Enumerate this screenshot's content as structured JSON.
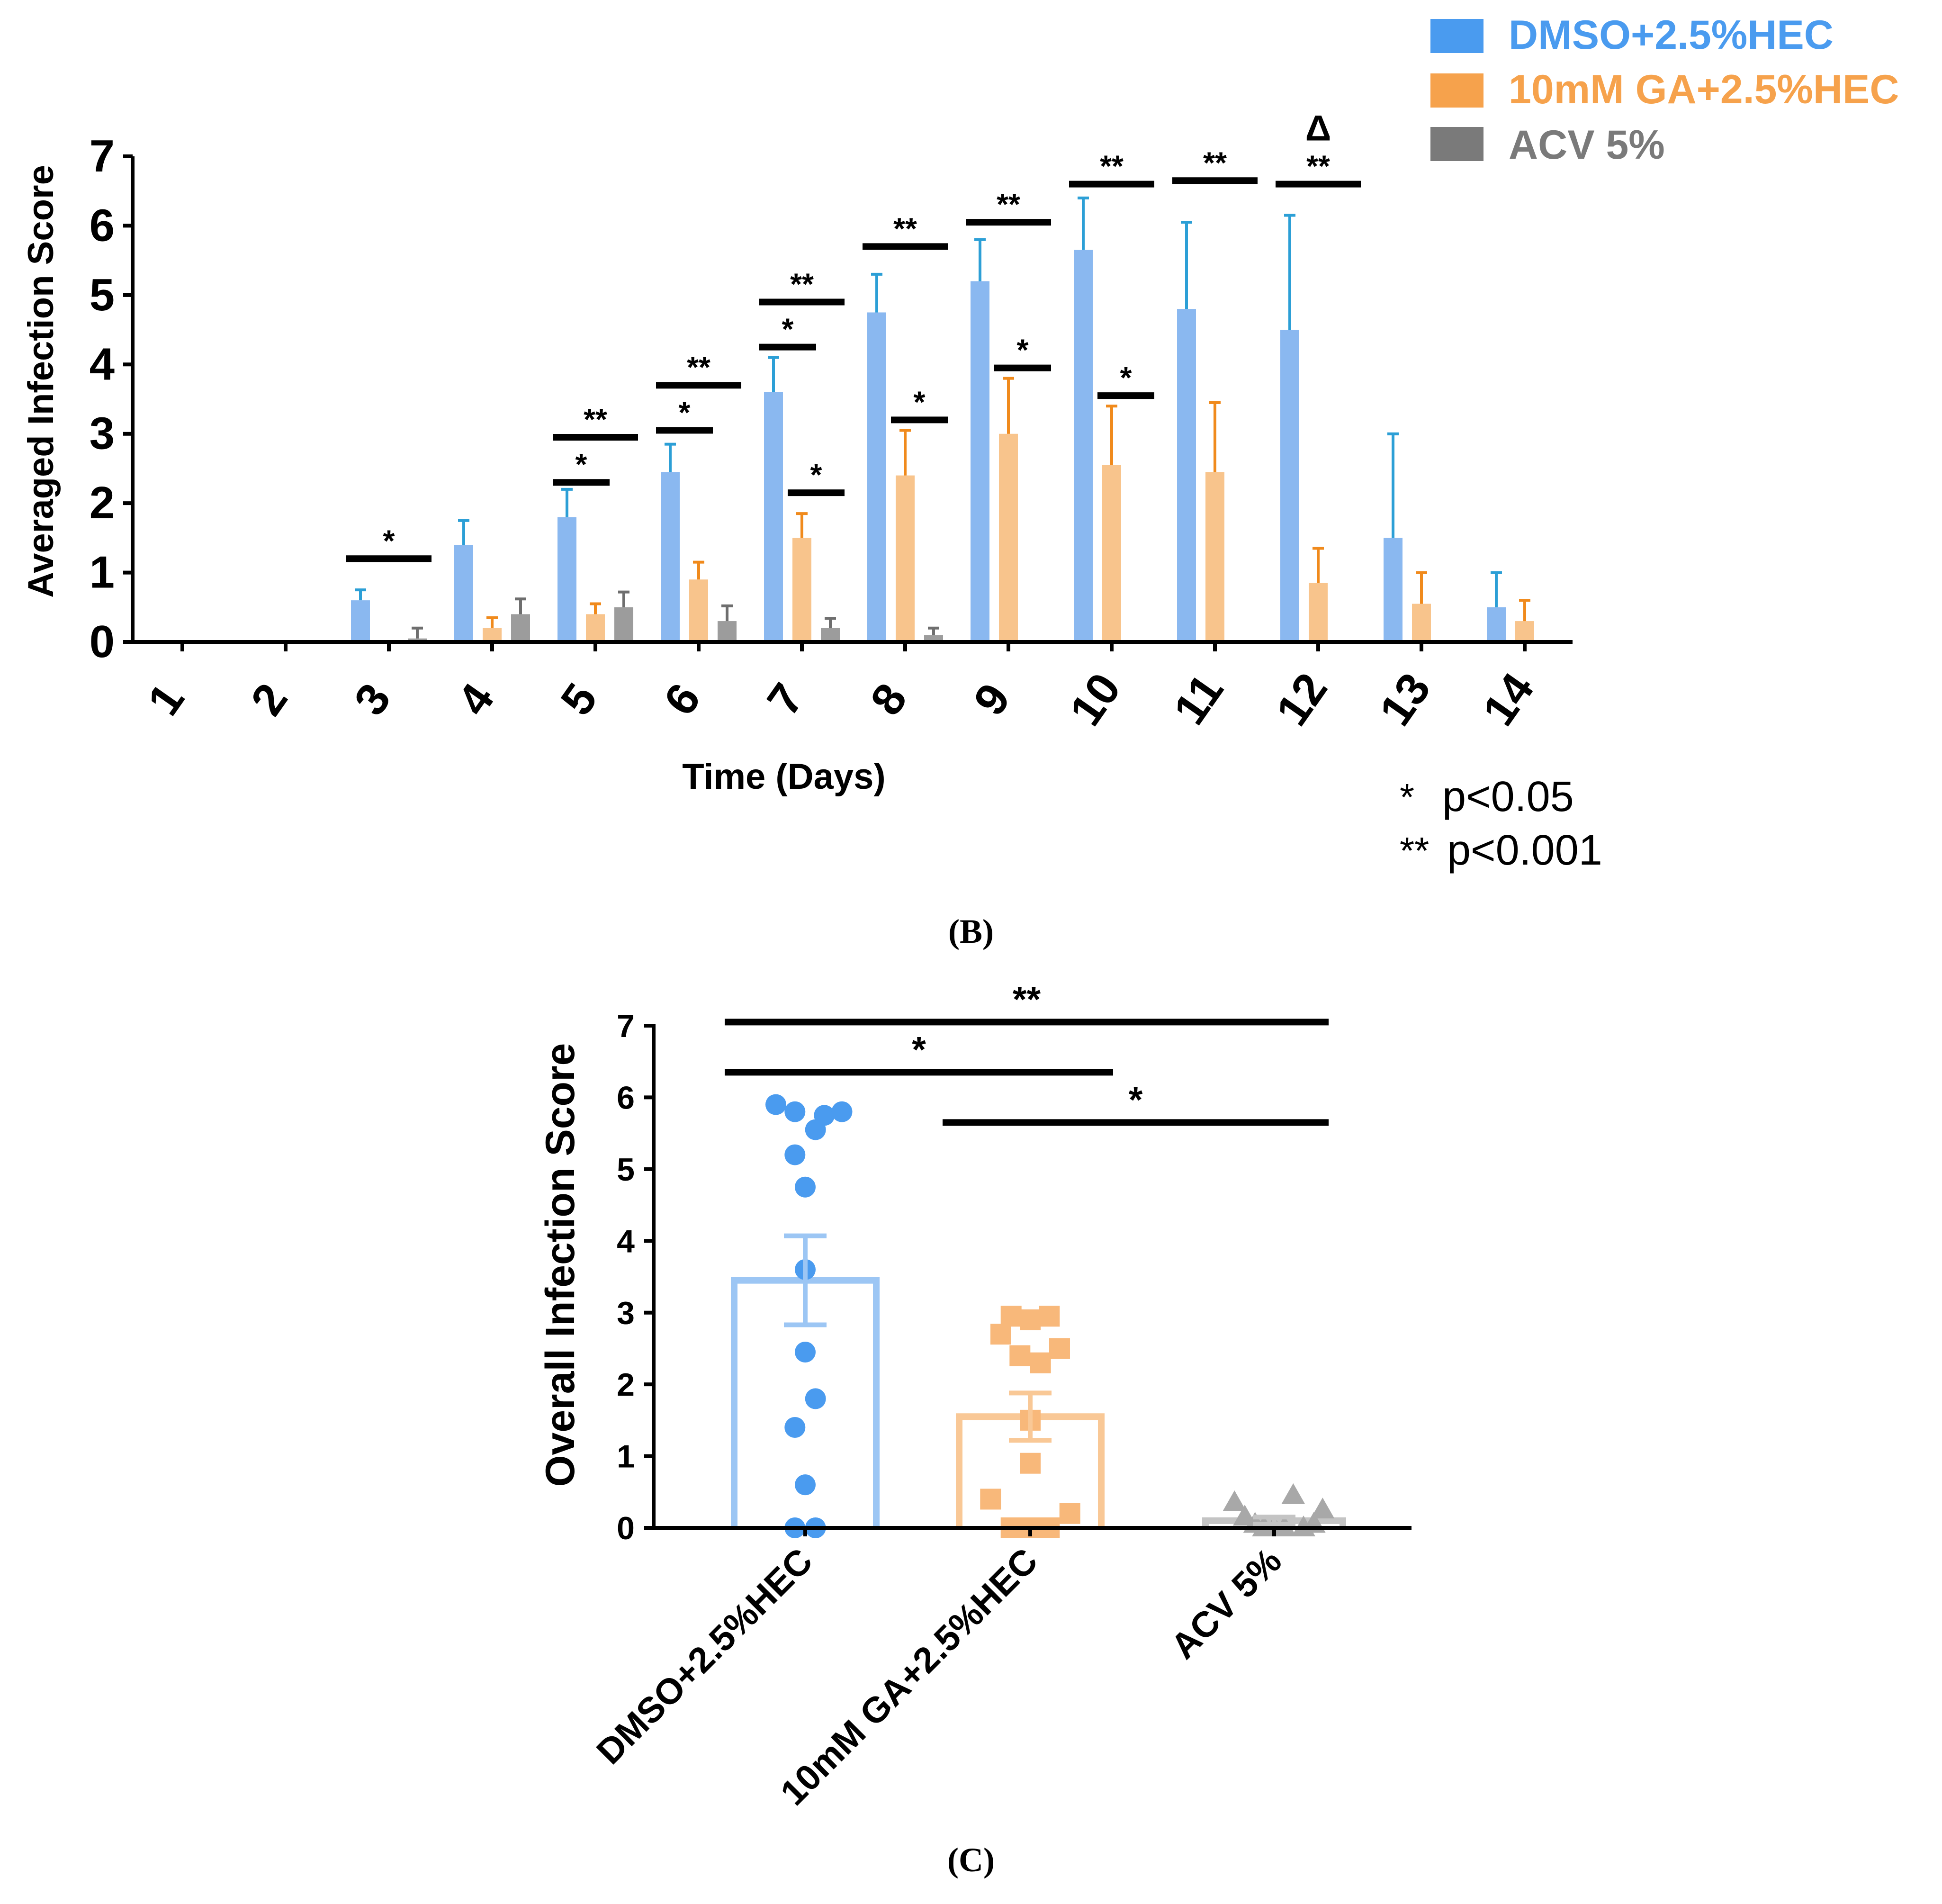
{
  "chart_data": [
    {
      "type": "bar",
      "title": "",
      "xlabel": "Time (Days)",
      "ylabel": "Averaged Infection Score",
      "ylim": [
        0,
        7
      ],
      "yticks": [
        "0",
        "1",
        "2",
        "3",
        "4",
        "5",
        "6",
        "7"
      ],
      "categories": [
        "1",
        "2",
        "3",
        "4",
        "5",
        "6",
        "7",
        "8",
        "9",
        "10",
        "11",
        "12",
        "13",
        "14"
      ],
      "series": [
        {
          "name": "DMSO+2.5%HEC",
          "color": "#8ab8f0",
          "legend_color": "#4a9bef",
          "err_color": "#2c9fd6",
          "values": [
            0,
            0,
            0.6,
            1.4,
            1.8,
            2.45,
            3.6,
            4.75,
            5.2,
            5.65,
            4.8,
            4.5,
            1.5,
            0.5
          ],
          "errors": [
            0,
            0,
            0.15,
            0.35,
            0.4,
            0.4,
            0.5,
            0.55,
            0.6,
            0.75,
            1.25,
            1.65,
            1.5,
            0.5
          ]
        },
        {
          "name": "10mM GA+2.5%HEC",
          "color": "#f8c48c",
          "legend_color": "#f6a24c",
          "err_color": "#f08a1c",
          "values": [
            0,
            0,
            0,
            0.2,
            0.4,
            0.9,
            1.5,
            2.4,
            3.0,
            2.55,
            2.45,
            0.85,
            0.55,
            0.3
          ],
          "errors": [
            0,
            0,
            0,
            0.15,
            0.15,
            0.25,
            0.35,
            0.65,
            0.8,
            0.85,
            1.0,
            0.5,
            0.45,
            0.3
          ]
        },
        {
          "name": "ACV 5%",
          "color": "#9c9c9c",
          "legend_color": "#7a7a7a",
          "err_color": "#6e6e6e",
          "values": [
            0,
            0,
            0.05,
            0.4,
            0.5,
            0.3,
            0.2,
            0.1,
            0,
            0,
            0,
            0,
            0,
            0
          ],
          "errors": [
            0,
            0,
            0.15,
            0.22,
            0.22,
            0.22,
            0.14,
            0.1,
            0,
            0,
            0,
            0,
            0,
            0
          ]
        }
      ],
      "significance": [
        {
          "day": "3",
          "from": 0,
          "to": 2,
          "y": 1.2,
          "label": "*"
        },
        {
          "day": "5",
          "from": 0,
          "to": 1,
          "y": 2.3,
          "label": "*"
        },
        {
          "day": "5",
          "from": 0,
          "to": 2,
          "y": 2.95,
          "label": "**"
        },
        {
          "day": "6",
          "from": 0,
          "to": 1,
          "y": 3.05,
          "label": "*"
        },
        {
          "day": "6",
          "from": 0,
          "to": 2,
          "y": 3.7,
          "label": "**"
        },
        {
          "day": "7",
          "from": 0,
          "to": 1,
          "y": 4.25,
          "label": "*"
        },
        {
          "day": "7",
          "from": 0,
          "to": 2,
          "y": 4.9,
          "label": "**"
        },
        {
          "day": "7",
          "from": 1,
          "to": 2,
          "y": 2.15,
          "label": "*"
        },
        {
          "day": "8",
          "from": 0,
          "to": 2,
          "y": 5.7,
          "label": "**"
        },
        {
          "day": "8",
          "from": 1,
          "to": 2,
          "y": 3.2,
          "label": "*"
        },
        {
          "day": "9",
          "from": 0,
          "to": 2,
          "y": 6.05,
          "label": "**"
        },
        {
          "day": "9",
          "from": 1,
          "to": 2,
          "y": 3.95,
          "label": "*"
        },
        {
          "day": "10",
          "from": 0,
          "to": 2,
          "y": 6.6,
          "label": "**"
        },
        {
          "day": "10",
          "from": 1,
          "to": 2,
          "y": 3.55,
          "label": "*"
        },
        {
          "day": "11",
          "from": 0,
          "to": 2,
          "y": 6.65,
          "label": "**"
        },
        {
          "day": "12",
          "from": 0,
          "to": 2,
          "y": 6.6,
          "label": "**",
          "extra_label": "Δ"
        }
      ],
      "footnotes": [
        {
          "symbol": "*",
          "text": "p<0.05"
        },
        {
          "symbol": "**",
          "text": "p<0.001"
        }
      ],
      "panel_label": "(B)"
    },
    {
      "type": "scatter",
      "title": "",
      "xlabel": "",
      "ylabel": "Overall Infection Score",
      "ylim": [
        0,
        7
      ],
      "yticks": [
        "0",
        "1",
        "2",
        "3",
        "4",
        "5",
        "6",
        "7"
      ],
      "categories": [
        "DMSO+2.5%HEC",
        "10mM GA+2.5%HEC",
        "ACV 5%"
      ],
      "groups": [
        {
          "name": "DMSO+2.5%HEC",
          "marker": "circle",
          "color": "#4a9bef",
          "bar_color": "#9cc6f4",
          "mean": 3.45,
          "sem": 0.62,
          "points": [
            {
              "offset": -0.2,
              "value": 5.9
            },
            {
              "offset": -0.07,
              "value": 5.8
            },
            {
              "offset": 0.07,
              "value": 5.55
            },
            {
              "offset": 0.13,
              "value": 5.75
            },
            {
              "offset": 0.25,
              "value": 5.8
            },
            {
              "offset": -0.07,
              "value": 5.2
            },
            {
              "offset": 0.0,
              "value": 4.75
            },
            {
              "offset": 0.0,
              "value": 3.6
            },
            {
              "offset": 0.0,
              "value": 2.45
            },
            {
              "offset": 0.07,
              "value": 1.8
            },
            {
              "offset": -0.07,
              "value": 1.4
            },
            {
              "offset": 0.0,
              "value": 0.6
            },
            {
              "offset": -0.07,
              "value": 0.0
            },
            {
              "offset": 0.07,
              "value": 0.0
            }
          ]
        },
        {
          "name": "10mM GA+2.5%HEC",
          "marker": "square",
          "color": "#f8b87a",
          "bar_color": "#f9c896",
          "mean": 1.55,
          "sem": 0.33,
          "points": [
            {
              "offset": -0.13,
              "value": 2.95
            },
            {
              "offset": 0.0,
              "value": 2.9
            },
            {
              "offset": 0.13,
              "value": 2.95
            },
            {
              "offset": -0.2,
              "value": 2.7
            },
            {
              "offset": -0.07,
              "value": 2.4
            },
            {
              "offset": 0.07,
              "value": 2.3
            },
            {
              "offset": 0.2,
              "value": 2.5
            },
            {
              "offset": 0.0,
              "value": 1.5
            },
            {
              "offset": 0.0,
              "value": 0.9
            },
            {
              "offset": -0.27,
              "value": 0.4
            },
            {
              "offset": 0.27,
              "value": 0.2
            },
            {
              "offset": -0.13,
              "value": 0.0
            },
            {
              "offset": 0.0,
              "value": 0.0
            },
            {
              "offset": 0.13,
              "value": 0.0
            }
          ]
        },
        {
          "name": "ACV 5%",
          "marker": "triangle",
          "color": "#a8a8a8",
          "bar_color": "#c4c4c4",
          "mean": 0.1,
          "sem": 0.05,
          "points": [
            {
              "offset": -0.27,
              "value": 0.35
            },
            {
              "offset": -0.2,
              "value": 0.15
            },
            {
              "offset": -0.13,
              "value": 0.05
            },
            {
              "offset": -0.07,
              "value": 0.0
            },
            {
              "offset": 0.0,
              "value": 0.0
            },
            {
              "offset": 0.07,
              "value": 0.0
            },
            {
              "offset": 0.13,
              "value": 0.45
            },
            {
              "offset": 0.2,
              "value": 0.0
            },
            {
              "offset": 0.27,
              "value": 0.05
            },
            {
              "offset": 0.33,
              "value": 0.25
            }
          ]
        }
      ],
      "significance": [
        {
          "from": 0,
          "to": 2,
          "y": 7.05,
          "label": "**"
        },
        {
          "from": 0,
          "to": 1,
          "y": 6.35,
          "label": "*"
        },
        {
          "from": 1,
          "to": 2,
          "y": 5.65,
          "label": "*"
        }
      ],
      "panel_label": "(C)"
    }
  ]
}
